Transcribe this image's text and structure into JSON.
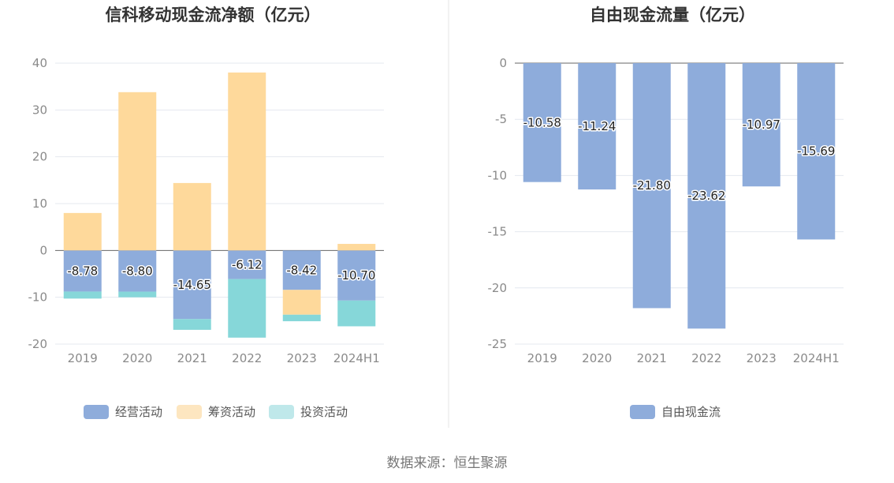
{
  "chart_data": [
    {
      "type": "bar",
      "stacked": true,
      "title": "信科移动现金流净额（亿元）",
      "categories": [
        "2019",
        "2020",
        "2021",
        "2022",
        "2023",
        "2024H1"
      ],
      "ylim": [
        -20,
        40
      ],
      "yticks": [
        40,
        30,
        20,
        10,
        0,
        -10,
        -20
      ],
      "grid": true,
      "legend_position": "bottom",
      "series": [
        {
          "name": "经营活动",
          "color": "#8eacdb",
          "values": [
            -8.78,
            -8.8,
            -14.65,
            -6.12,
            -8.42,
            -10.7
          ],
          "labeled": true
        },
        {
          "name": "筹资活动",
          "color": "#fed99b",
          "values": [
            8.0,
            33.8,
            14.4,
            38.0,
            -5.3,
            1.4
          ],
          "labeled": false
        },
        {
          "name": "投资活动",
          "color": "#86d7d9",
          "values": [
            -1.5,
            -1.2,
            -2.3,
            -12.5,
            -1.4,
            -5.5
          ],
          "labeled": false
        }
      ],
      "legend_swatch_colors": [
        "#8eacdb",
        "#fde6c0",
        "#bfe8ea"
      ]
    },
    {
      "type": "bar",
      "title": "自由现金流量（亿元）",
      "categories": [
        "2019",
        "2020",
        "2021",
        "2022",
        "2023",
        "2024H1"
      ],
      "ylim": [
        -25,
        0
      ],
      "yticks": [
        0,
        -5,
        -10,
        -15,
        -20,
        -25
      ],
      "grid": true,
      "legend_position": "bottom",
      "series": [
        {
          "name": "自由现金流",
          "color": "#8eacdb",
          "values": [
            -10.58,
            -11.24,
            -21.8,
            -23.62,
            -10.97,
            -15.69
          ],
          "labeled": true
        }
      ],
      "legend_swatch_colors": [
        "#8eacdb"
      ]
    }
  ],
  "source": "数据来源：恒生聚源"
}
